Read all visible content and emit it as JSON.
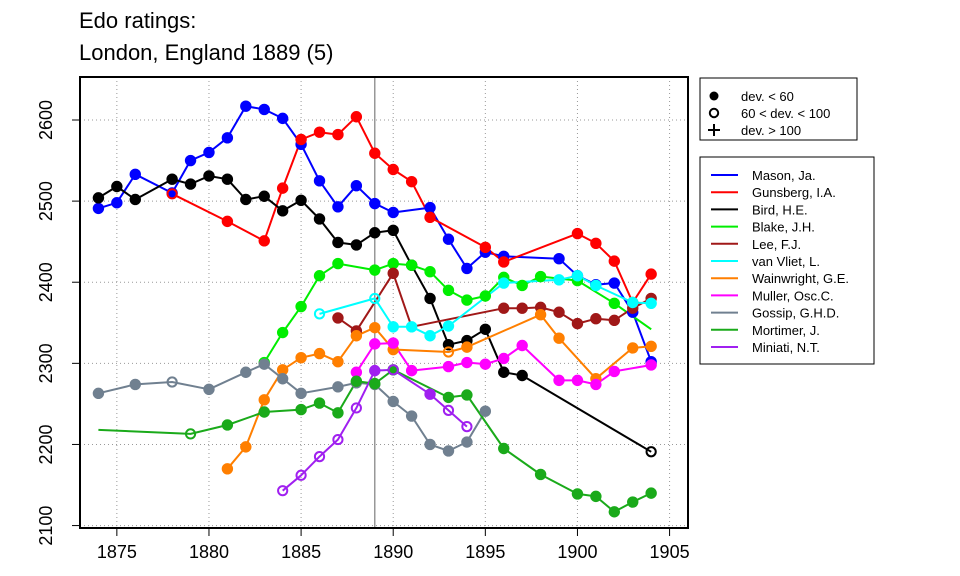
{
  "chart_data": {
    "type": "line",
    "title": "Edo ratings:",
    "subtitle": "London, England 1889 (5)",
    "xlim": [
      1873,
      1906
    ],
    "ylim": [
      2097,
      2653
    ],
    "x_ticks": [
      1875,
      1880,
      1885,
      1890,
      1895,
      1900,
      1905
    ],
    "y_ticks": [
      2100,
      2200,
      2300,
      2400,
      2500,
      2600
    ],
    "vertical_line_x": 1889,
    "grid": true,
    "marker_legend": [
      {
        "symbol": "filled-circle",
        "label": "dev. < 60"
      },
      {
        "symbol": "open-circle",
        "label": "60 < dev. < 100"
      },
      {
        "symbol": "plus",
        "label": "dev. > 100"
      }
    ],
    "series": [
      {
        "name": "Mason, Ja.",
        "color": "#0000ff",
        "x": [
          1874,
          1875,
          1876,
          1878,
          1879,
          1880,
          1881,
          1882,
          1883,
          1884,
          1885,
          1886,
          1887,
          1888,
          1889,
          1890,
          1892,
          1893,
          1894,
          1895,
          1896,
          1899,
          1900,
          1901,
          1902,
          1903,
          1904
        ],
        "y": [
          2491,
          2498,
          2533,
          2510,
          2550,
          2560,
          2578,
          2617,
          2613,
          2602,
          2570,
          2525,
          2493,
          2519,
          2497,
          2486,
          2492,
          2453,
          2417,
          2437,
          2432,
          2429,
          2408,
          2397,
          2399,
          2363,
          2302
        ],
        "m": [
          "f",
          "f",
          "f",
          "f",
          "f",
          "f",
          "f",
          "f",
          "f",
          "f",
          "f",
          "f",
          "f",
          "f",
          "f",
          "f",
          "f",
          "f",
          "f",
          "f",
          "f",
          "f",
          "f",
          "f",
          "f",
          "f",
          "f"
        ]
      },
      {
        "name": "Gunsberg, I.A.",
        "color": "#ff0000",
        "x": [
          1878,
          1881,
          1883,
          1884,
          1885,
          1886,
          1887,
          1888,
          1889,
          1890,
          1891,
          1892,
          1895,
          1896,
          1900,
          1901,
          1902,
          1903,
          1904
        ],
        "y": [
          2509,
          2475,
          2451,
          2516,
          2576,
          2585,
          2582,
          2604,
          2559,
          2539,
          2524,
          2480,
          2443,
          2425,
          2460,
          2448,
          2426,
          2375,
          2410
        ],
        "m": [
          "o",
          "f",
          "f",
          "f",
          "f",
          "f",
          "f",
          "f",
          "f",
          "f",
          "f",
          "f",
          "f",
          "f",
          "f",
          "f",
          "f",
          "f",
          "f"
        ]
      },
      {
        "name": "Bird, H.E.",
        "color": "#000000",
        "x": [
          1874,
          1875,
          1876,
          1878,
          1879,
          1880,
          1881,
          1882,
          1883,
          1884,
          1885,
          1886,
          1887,
          1888,
          1889,
          1890,
          1891,
          1892,
          1893,
          1894,
          1895,
          1896,
          1897,
          1904
        ],
        "y": [
          2504,
          2518,
          2502,
          2527,
          2521,
          2531,
          2527,
          2502,
          2506,
          2488,
          2501,
          2478,
          2449,
          2446,
          2461,
          2464,
          2421,
          2380,
          2323,
          2328,
          2342,
          2289,
          2285,
          2191
        ],
        "m": [
          "f",
          "f",
          "f",
          "f",
          "f",
          "f",
          "f",
          "f",
          "f",
          "f",
          "f",
          "f",
          "f",
          "f",
          "f",
          "f",
          "f",
          "f",
          "f",
          "f",
          "f",
          "f",
          "f",
          "o"
        ]
      },
      {
        "name": "Blake, J.H.",
        "color": "#00ee00",
        "x": [
          1883,
          1884,
          1885,
          1886,
          1887,
          1889,
          1890,
          1891,
          1892,
          1893,
          1894,
          1895,
          1896,
          1897,
          1898,
          1900,
          1902,
          1904
        ],
        "y": [
          2301,
          2338,
          2370,
          2408,
          2423,
          2415,
          2423,
          2421,
          2413,
          2390,
          2378,
          2383,
          2406,
          2396,
          2407,
          2402,
          2374,
          2342
        ],
        "m": [
          "f",
          "f",
          "f",
          "f",
          "f",
          "f",
          "f",
          "f",
          "f",
          "f",
          "f",
          "f",
          "f",
          "f",
          "f",
          "f",
          "f",
          "n"
        ]
      },
      {
        "name": "Lee, F.J.",
        "color": "#a01818",
        "x": [
          1887,
          1888,
          1890,
          1891,
          1896,
          1897,
          1898,
          1899,
          1900,
          1901,
          1902,
          1903,
          1904
        ],
        "y": [
          2356,
          2340,
          2411,
          2345,
          2368,
          2368,
          2369,
          2363,
          2349,
          2355,
          2353,
          2368,
          2380
        ],
        "m": [
          "f",
          "f",
          "f",
          "n",
          "f",
          "f",
          "f",
          "f",
          "f",
          "f",
          "f",
          "f",
          "f"
        ]
      },
      {
        "name": "van Vliet, L.",
        "color": "#00ffff",
        "x": [
          1886,
          1889,
          1890,
          1891,
          1892,
          1893,
          1896,
          1899,
          1900,
          1901,
          1903,
          1904
        ],
        "y": [
          2361,
          2380,
          2345,
          2345,
          2334,
          2346,
          2399,
          2403,
          2408,
          2396,
          2375,
          2374
        ],
        "m": [
          "o",
          "o",
          "f",
          "f",
          "f",
          "f",
          "f",
          "f",
          "f",
          "f",
          "f",
          "f"
        ]
      },
      {
        "name": "Wainwright, G.E.",
        "color": "#ff7f00",
        "x": [
          1881,
          1882,
          1883,
          1884,
          1885,
          1886,
          1887,
          1888,
          1889,
          1890,
          1893,
          1894,
          1898,
          1899,
          1901,
          1903,
          1904
        ],
        "y": [
          2170,
          2197,
          2255,
          2292,
          2307,
          2312,
          2302,
          2334,
          2344,
          2317,
          2314,
          2320,
          2360,
          2331,
          2281,
          2319,
          2321
        ],
        "m": [
          "f",
          "f",
          "f",
          "f",
          "f",
          "f",
          "f",
          "f",
          "f",
          "f",
          "o",
          "f",
          "f",
          "f",
          "f",
          "f",
          "f"
        ]
      },
      {
        "name": "Muller, Osc.C.",
        "color": "#ff00ff",
        "x": [
          1888,
          1889,
          1890,
          1891,
          1893,
          1894,
          1895,
          1896,
          1897,
          1899,
          1900,
          1901,
          1902,
          1904
        ],
        "y": [
          2289,
          2324,
          2325,
          2291,
          2296,
          2301,
          2299,
          2306,
          2322,
          2279,
          2279,
          2274,
          2290,
          2298
        ],
        "m": [
          "f",
          "f",
          "f",
          "f",
          "f",
          "f",
          "f",
          "f",
          "f",
          "f",
          "f",
          "f",
          "f",
          "f"
        ]
      },
      {
        "name": "Gossip, G.H.D.",
        "color": "#708090",
        "x": [
          1874,
          1876,
          1878,
          1880,
          1882,
          1883,
          1884,
          1885,
          1887,
          1888,
          1889,
          1890,
          1891,
          1892,
          1893,
          1894,
          1895
        ],
        "y": [
          2263,
          2274,
          2277,
          2268,
          2289,
          2299,
          2281,
          2263,
          2271,
          2276,
          2274,
          2253,
          2235,
          2200,
          2192,
          2203,
          2241
        ],
        "m": [
          "f",
          "f",
          "o",
          "f",
          "f",
          "f",
          "f",
          "f",
          "f",
          "f",
          "f",
          "f",
          "f",
          "f",
          "f",
          "f",
          "f"
        ]
      },
      {
        "name": "Mortimer, J.",
        "color": "#1aaa1a",
        "x": [
          1874,
          1879,
          1881,
          1883,
          1885,
          1886,
          1887,
          1888,
          1889,
          1890,
          1893,
          1894,
          1896,
          1898,
          1900,
          1901,
          1902,
          1903,
          1904
        ],
        "y": [
          2218,
          2213,
          2224,
          2240,
          2243,
          2251,
          2239,
          2278,
          2275,
          2292,
          2258,
          2261,
          2195,
          2163,
          2139,
          2136,
          2117,
          2129,
          2140
        ],
        "m": [
          "n",
          "o",
          "f",
          "f",
          "f",
          "f",
          "f",
          "f",
          "f",
          "f",
          "f",
          "f",
          "f",
          "f",
          "f",
          "f",
          "f",
          "f",
          "f"
        ]
      },
      {
        "name": "Miniati, N.T.",
        "color": "#a020f0",
        "x": [
          1884,
          1885,
          1886,
          1887,
          1888,
          1889,
          1890,
          1892,
          1893,
          1894
        ],
        "y": [
          2143,
          2162,
          2185,
          2206,
          2245,
          2291,
          2292,
          2262,
          2242,
          2222
        ],
        "m": [
          "o",
          "o",
          "o",
          "o",
          "o",
          "f",
          "o",
          "f",
          "o",
          "o"
        ]
      }
    ]
  }
}
